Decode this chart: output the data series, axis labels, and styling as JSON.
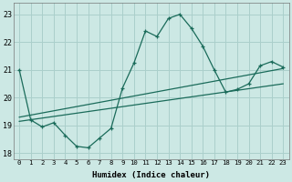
{
  "xlabel": "Humidex (Indice chaleur)",
  "ylabel": "",
  "bg_color": "#cce8e4",
  "grid_color": "#aacfcb",
  "line_color": "#1a6b5a",
  "xlim": [
    -0.5,
    23.5
  ],
  "ylim": [
    17.8,
    23.4
  ],
  "yticks": [
    18,
    19,
    20,
    21,
    22,
    23
  ],
  "xticks": [
    0,
    1,
    2,
    3,
    4,
    5,
    6,
    7,
    8,
    9,
    10,
    11,
    12,
    13,
    14,
    15,
    16,
    17,
    18,
    19,
    20,
    21,
    22,
    23
  ],
  "main_x": [
    0,
    1,
    2,
    3,
    4,
    5,
    6,
    7,
    8,
    9,
    10,
    11,
    12,
    13,
    14,
    15,
    16,
    17,
    18,
    19,
    20,
    21,
    22,
    23
  ],
  "main_y": [
    21.0,
    19.2,
    18.95,
    19.1,
    18.65,
    18.25,
    18.2,
    18.55,
    18.9,
    20.35,
    21.25,
    22.4,
    22.2,
    22.85,
    23.0,
    22.5,
    21.85,
    21.0,
    20.2,
    20.3,
    20.5,
    21.15,
    21.3,
    21.1
  ],
  "trend1_x": [
    0,
    23
  ],
  "trend1_y": [
    19.15,
    20.5
  ],
  "trend2_x": [
    0,
    23
  ],
  "trend2_y": [
    19.3,
    21.05
  ]
}
